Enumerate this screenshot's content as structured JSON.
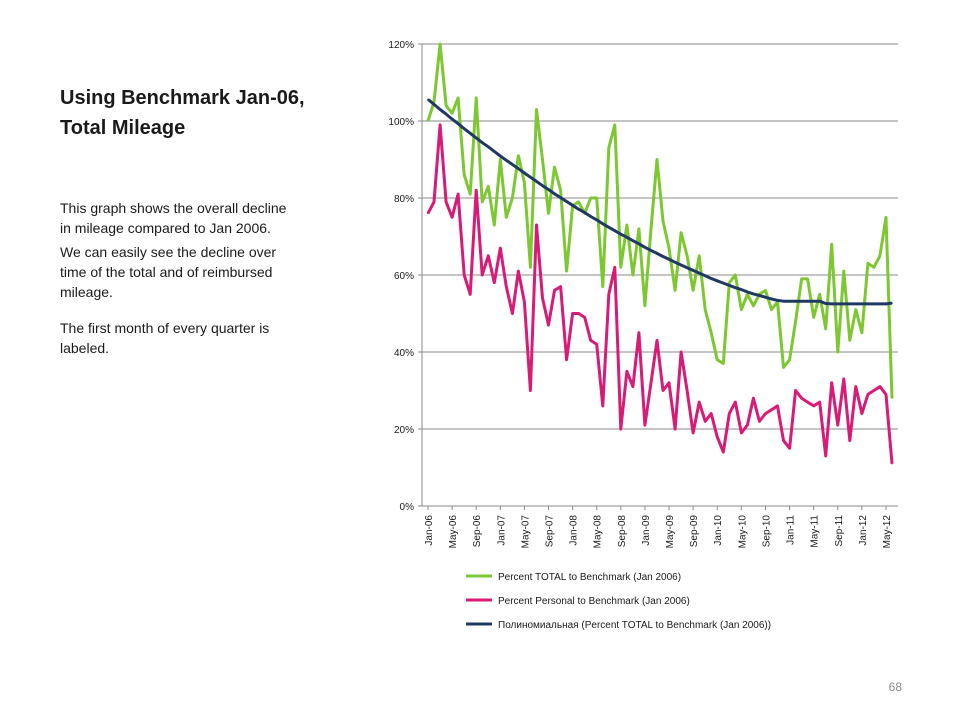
{
  "slide": {
    "title_line1": "Using Benchmark Jan-06,",
    "title_line2": "Total Mileage",
    "body": [
      "This graph shows the overall decline in mileage compared to Jan 2006.",
      "We can easily see the decline over time of the total and of reimbursed mileage.",
      "The first month of every quarter is labeled."
    ],
    "page_number": "68"
  },
  "chart_data": {
    "type": "line",
    "title": "",
    "xlabel": "",
    "ylabel": "",
    "ylim": [
      0,
      120
    ],
    "y_ticks": [
      0,
      20,
      40,
      60,
      80,
      100,
      120
    ],
    "y_tick_labels": [
      "0%",
      "20%",
      "40%",
      "60%",
      "80%",
      "100%",
      "120%"
    ],
    "y_gridlines": true,
    "x_tick_labels": [
      "Jan-06",
      "May-06",
      "Sep-06",
      "Jan-07",
      "May-07",
      "Sep-07",
      "Jan-08",
      "May-08",
      "Sep-08",
      "Jan-09",
      "May-09",
      "Sep-09",
      "Jan-10",
      "May-10",
      "Sep-10",
      "Jan-11",
      "May-11",
      "Sep-11",
      "Jan-12",
      "May-12"
    ],
    "x_tick_every_months": 4,
    "legend_position": "bottom",
    "series": [
      {
        "name": "Percent TOTAL to Benchmark (Jan 2006)",
        "color": "#7dc832",
        "values": [
          100,
          105,
          120,
          104,
          102,
          106,
          86,
          81,
          106,
          79,
          83,
          73,
          90,
          75,
          80,
          91,
          84,
          62,
          103,
          90,
          76,
          88,
          82,
          61,
          78,
          79,
          76,
          80,
          80,
          57,
          93,
          99,
          62,
          73,
          60,
          72,
          52,
          72,
          90,
          74,
          67,
          56,
          71,
          65,
          56,
          65,
          51,
          45,
          38,
          37,
          58,
          60,
          51,
          55,
          52,
          55,
          56,
          51,
          53,
          36,
          38,
          48,
          59,
          59,
          49,
          55,
          46,
          68,
          40,
          61,
          43,
          51,
          45,
          63,
          62,
          65,
          75,
          28
        ]
      },
      {
        "name": "Percent Personal to Benchmark (Jan 2006)",
        "color": "#d81b76",
        "values": [
          76,
          79,
          99,
          79,
          75,
          81,
          60,
          55,
          82,
          60,
          65,
          58,
          67,
          57,
          50,
          61,
          53,
          30,
          73,
          54,
          47,
          56,
          57,
          38,
          50,
          50,
          49,
          43,
          42,
          26,
          55,
          62,
          20,
          35,
          31,
          45,
          21,
          32,
          43,
          30,
          32,
          20,
          40,
          30,
          19,
          27,
          22,
          24,
          18,
          14,
          24,
          27,
          19,
          21,
          28,
          22,
          24,
          25,
          26,
          17,
          15,
          30,
          28,
          27,
          26,
          27,
          13,
          32,
          21,
          33,
          17,
          31,
          24,
          29,
          30,
          31,
          29,
          11
        ]
      },
      {
        "name": "Полиномиальная (Percent TOTAL to Benchmark (Jan 2006))",
        "color": "#1f3864",
        "values": [
          105.6,
          104.3,
          103.0,
          101.8,
          100.5,
          99.3,
          98.0,
          96.8,
          95.6,
          94.4,
          93.3,
          92.1,
          90.9,
          89.8,
          88.7,
          87.6,
          86.5,
          85.4,
          84.3,
          83.2,
          82.2,
          81.1,
          80.1,
          79.1,
          78.1,
          77.1,
          76.2,
          75.2,
          74.3,
          73.3,
          72.4,
          71.5,
          70.6,
          69.8,
          68.9,
          68.1,
          67.2,
          66.4,
          65.6,
          64.8,
          64.1,
          63.3,
          62.6,
          61.9,
          61.2,
          60.5,
          59.8,
          59.1,
          58.5,
          57.9,
          57.3,
          56.7,
          56.2,
          55.6,
          55.1,
          54.7,
          54.2,
          53.8,
          53.4,
          53.2,
          53.2,
          53.2,
          53.2,
          53.2,
          53.2,
          53.2,
          52.6,
          52.5,
          52.5,
          52.5,
          52.5,
          52.5,
          52.5,
          52.5,
          52.5,
          52.5,
          52.5,
          52.7
        ]
      }
    ]
  }
}
